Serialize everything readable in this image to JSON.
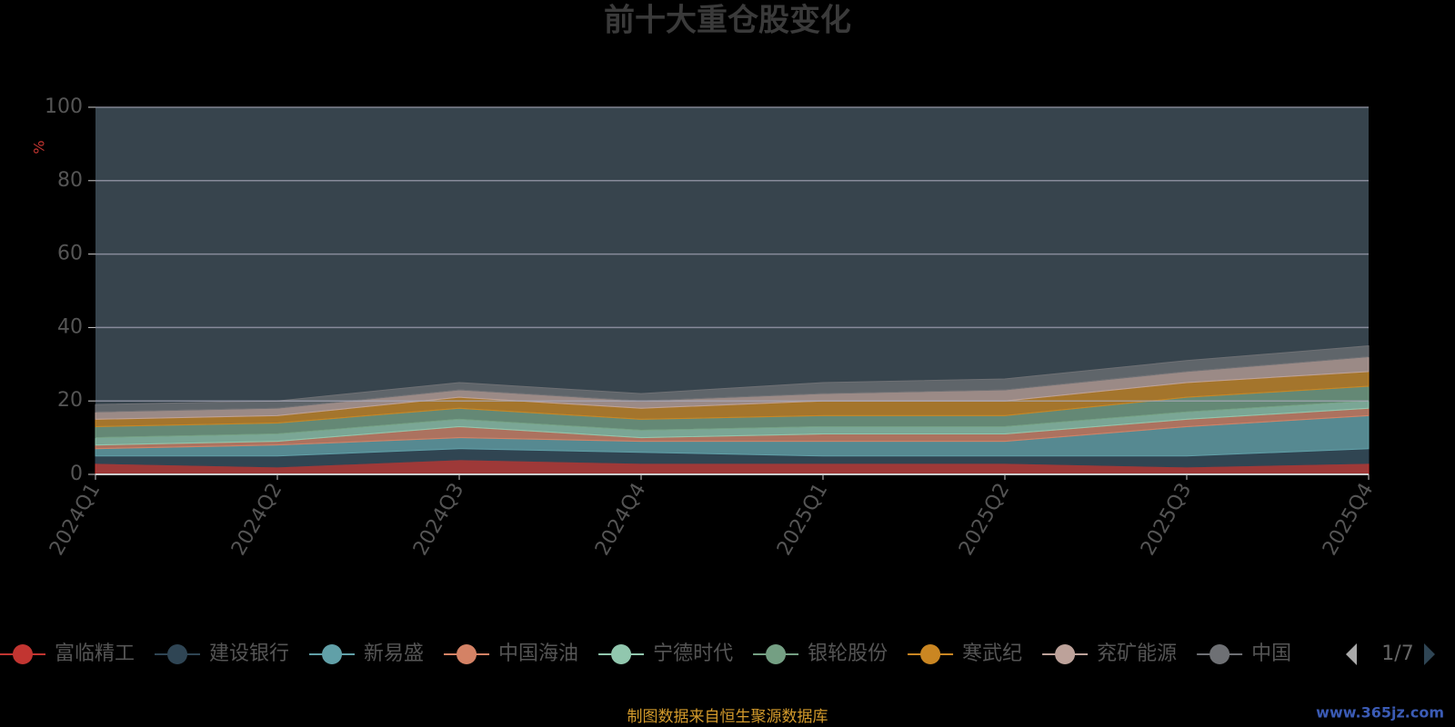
{
  "chart_data": {
    "type": "stacked_area",
    "title": "前十大重仓股变化",
    "y_unit": "%",
    "categories": [
      "2024Q1",
      "2024Q2",
      "2024Q3",
      "2024Q4",
      "2025Q1",
      "2025Q2",
      "2025Q3",
      "2025Q4"
    ],
    "ylim": [
      0,
      100
    ],
    "yticks": [
      0,
      20,
      40,
      60,
      80,
      100
    ],
    "grid": true,
    "series": [
      {
        "name": "富临精工",
        "color": "#c23531",
        "values": [
          3,
          2,
          4,
          3,
          3,
          3,
          2,
          3
        ]
      },
      {
        "name": "建设银行",
        "color": "#2f4554",
        "values": [
          2,
          3,
          3,
          3,
          2,
          2,
          3,
          4
        ]
      },
      {
        "name": "新易盛",
        "color": "#61a0a8",
        "values": [
          2,
          3,
          3,
          3,
          4,
          4,
          8,
          9
        ]
      },
      {
        "name": "中国海油",
        "color": "#d48265",
        "values": [
          1,
          1,
          3,
          1,
          2,
          2,
          2,
          2
        ]
      },
      {
        "name": "宁德时代",
        "color": "#91c7ae",
        "values": [
          2,
          2,
          2,
          2,
          2,
          2,
          2,
          2
        ]
      },
      {
        "name": "银轮股份",
        "color": "#749f83",
        "values": [
          3,
          3,
          3,
          3,
          3,
          3,
          4,
          4
        ]
      },
      {
        "name": "寒武纪",
        "color": "#ca8622",
        "values": [
          2,
          2,
          3,
          3,
          4,
          4,
          4,
          4
        ]
      },
      {
        "name": "兖矿能源",
        "color": "#bda29a",
        "values": [
          2,
          2,
          2,
          2,
          2,
          3,
          3,
          4
        ]
      },
      {
        "name": "中国",
        "color": "#6e7074",
        "values": [
          2,
          2,
          2,
          2,
          3,
          3,
          3,
          3
        ]
      }
    ],
    "legend_page": "1/7",
    "source": "制图数据来自恒生聚源数据库",
    "watermark": "www.365jz.com"
  }
}
